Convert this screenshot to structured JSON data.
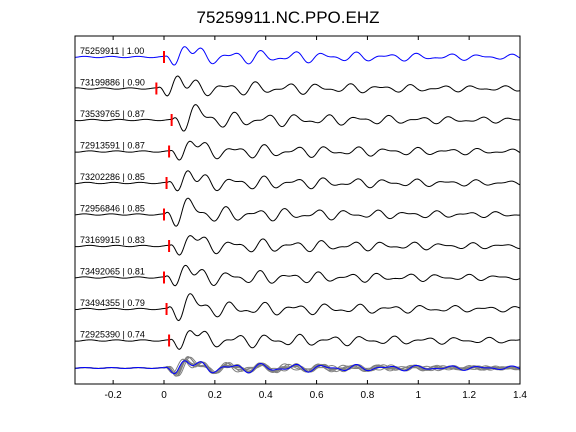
{
  "chart_data": {
    "type": "line",
    "title": "75259911.NC.PPO.EHZ",
    "xlim": [
      -0.35,
      1.4
    ],
    "xticks": [
      -0.2,
      0,
      0.2,
      0.4,
      0.6,
      0.8,
      1,
      1.2,
      1.4
    ],
    "xtick_labels": [
      "-0.2",
      "0",
      "0.2",
      "0.4",
      "0.6",
      "0.8",
      "1",
      "1.2",
      "1.4"
    ],
    "grid": false,
    "colors": {
      "reference": "#0000ff",
      "trace": "#000000",
      "stack": "#808080",
      "pick": "#ff0000"
    },
    "series": [
      {
        "name": "75259911 | 1.00",
        "pick_time": 0.0,
        "color": "#0000ff"
      },
      {
        "name": "73199886 | 0.90",
        "pick_time": -0.03,
        "color": "#000000"
      },
      {
        "name": "73539765 | 0.87",
        "pick_time": 0.03,
        "color": "#000000"
      },
      {
        "name": "72913591 | 0.87",
        "pick_time": 0.02,
        "color": "#000000"
      },
      {
        "name": "73202286 | 0.85",
        "pick_time": 0.01,
        "color": "#000000"
      },
      {
        "name": "72956846 | 0.85",
        "pick_time": 0.0,
        "color": "#000000"
      },
      {
        "name": "73169915 | 0.83",
        "pick_time": 0.02,
        "color": "#000000"
      },
      {
        "name": "73492065 | 0.81",
        "pick_time": 0.0,
        "color": "#000000"
      },
      {
        "name": "73494355 | 0.79",
        "pick_time": 0.01,
        "color": "#000000"
      },
      {
        "name": "72925390 | 0.74",
        "pick_time": 0.02,
        "color": "#000000"
      }
    ]
  }
}
